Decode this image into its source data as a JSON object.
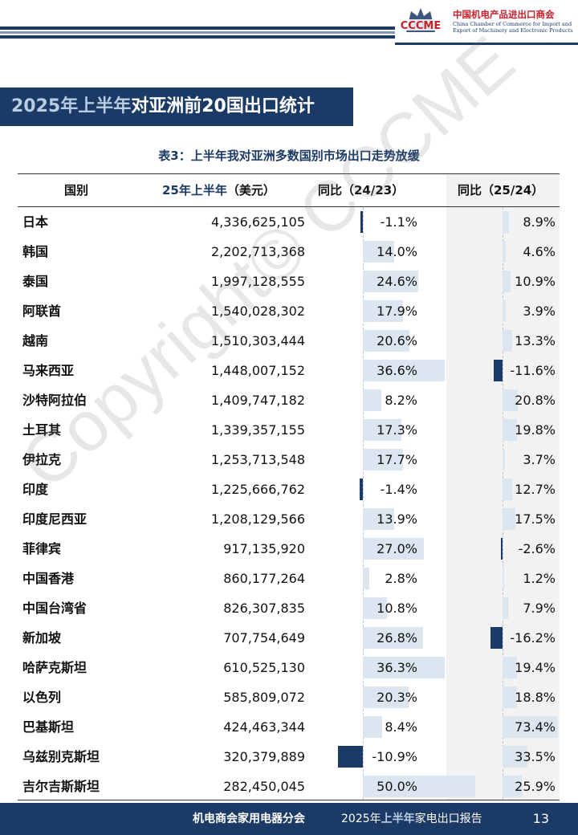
{
  "header": {
    "logo_text": "CCCME",
    "org_name_cn": "中国机电产品进出口商会",
    "org_name_en": "China Chamber of Commerce for Import and Export of Machinery and Electronic Products"
  },
  "section_title": {
    "highlight": "2025年上半年",
    "rest": "对亚洲前20国出口统计"
  },
  "table": {
    "caption": "表3：上半年我对亚洲多数国别市场出口走势放缓",
    "headers": {
      "country": "国别",
      "amount_highlight": "25年上半年",
      "amount_rest": "（美元）",
      "yoy_prev": "同比（24/23）",
      "yoy_curr": "同比（25/24）"
    },
    "rows": [
      {
        "country": "日本",
        "amount": "4,336,625,105",
        "yoy_prev": "-1.1%",
        "yoy_curr": "8.9%"
      },
      {
        "country": "韩国",
        "amount": "2,202,713,368",
        "yoy_prev": "14.0%",
        "yoy_curr": "4.6%"
      },
      {
        "country": "泰国",
        "amount": "1,997,128,555",
        "yoy_prev": "24.6%",
        "yoy_curr": "10.9%"
      },
      {
        "country": "阿联酋",
        "amount": "1,540,028,302",
        "yoy_prev": "17.9%",
        "yoy_curr": "3.9%"
      },
      {
        "country": "越南",
        "amount": "1,510,303,444",
        "yoy_prev": "20.6%",
        "yoy_curr": "13.3%"
      },
      {
        "country": "马来西亚",
        "amount": "1,448,007,152",
        "yoy_prev": "36.6%",
        "yoy_curr": "-11.6%"
      },
      {
        "country": "沙特阿拉伯",
        "amount": "1,409,747,182",
        "yoy_prev": "8.2%",
        "yoy_curr": "20.8%"
      },
      {
        "country": "土耳其",
        "amount": "1,339,357,155",
        "yoy_prev": "17.3%",
        "yoy_curr": "19.8%"
      },
      {
        "country": "伊拉克",
        "amount": "1,253,713,548",
        "yoy_prev": "17.7%",
        "yoy_curr": "3.7%"
      },
      {
        "country": "印度",
        "amount": "1,225,666,762",
        "yoy_prev": "-1.4%",
        "yoy_curr": "12.7%"
      },
      {
        "country": "印度尼西亚",
        "amount": "1,208,129,566",
        "yoy_prev": "13.9%",
        "yoy_curr": "17.5%"
      },
      {
        "country": "菲律宾",
        "amount": "917,135,920",
        "yoy_prev": "27.0%",
        "yoy_curr": "-2.6%"
      },
      {
        "country": "中国香港",
        "amount": "860,177,264",
        "yoy_prev": "2.8%",
        "yoy_curr": "1.2%"
      },
      {
        "country": "中国台湾省",
        "amount": "826,307,835",
        "yoy_prev": "10.8%",
        "yoy_curr": "7.9%"
      },
      {
        "country": "新加坡",
        "amount": "707,754,649",
        "yoy_prev": "26.8%",
        "yoy_curr": "-16.2%"
      },
      {
        "country": "哈萨克斯坦",
        "amount": "610,525,130",
        "yoy_prev": "36.3%",
        "yoy_curr": "19.4%"
      },
      {
        "country": "以色列",
        "amount": "585,809,072",
        "yoy_prev": "20.3%",
        "yoy_curr": "18.8%"
      },
      {
        "country": "巴基斯坦",
        "amount": "424,463,344",
        "yoy_prev": "8.4%",
        "yoy_curr": "73.4%"
      },
      {
        "country": "乌兹别克斯坦",
        "amount": "320,379,889",
        "yoy_prev": "-10.9%",
        "yoy_curr": "33.5%"
      },
      {
        "country": "吉尔吉斯斯坦",
        "amount": "282,450,045",
        "yoy_prev": "50.0%",
        "yoy_curr": "25.9%"
      }
    ]
  },
  "watermark": "Copyright© CCCME",
  "footer": {
    "org": "机电商会家用电器分会",
    "report_highlight": "2025年上半年",
    "report_prefix": "2025年",
    "report_mid": "上半年",
    "report_rest": "家电出口报告",
    "page": "13"
  },
  "colors": {
    "primary": "#1c3a66",
    "bar_positive": "#dce6f1",
    "bar_negative": "#1c3a66",
    "logo_red": "#c8202a"
  }
}
